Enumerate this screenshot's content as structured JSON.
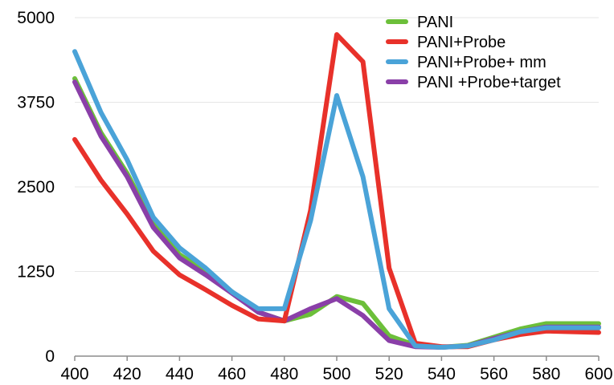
{
  "chart_data": {
    "type": "line",
    "title": "",
    "xlabel": "",
    "ylabel": "",
    "xlim": [
      400,
      600
    ],
    "ylim": [
      0,
      5000
    ],
    "x_ticks": [
      400,
      420,
      440,
      460,
      480,
      500,
      520,
      540,
      560,
      580,
      600
    ],
    "y_ticks": [
      0,
      1250,
      2500,
      3750,
      5000
    ],
    "grid": "horizontal",
    "legend_position": "top-right",
    "x": [
      400,
      410,
      420,
      430,
      440,
      450,
      460,
      470,
      480,
      490,
      500,
      510,
      520,
      530,
      540,
      550,
      560,
      570,
      580,
      590,
      600
    ],
    "series": [
      {
        "name": "PANI",
        "color": "#6cbf3a",
        "values": [
          4100,
          3300,
          2700,
          1950,
          1500,
          1250,
          950,
          650,
          520,
          620,
          880,
          780,
          300,
          160,
          130,
          160,
          280,
          400,
          480,
          480,
          480
        ]
      },
      {
        "name": "PANI+Probe",
        "color": "#e8312a",
        "values": [
          3200,
          2600,
          2100,
          1550,
          1200,
          980,
          750,
          550,
          520,
          2150,
          4750,
          4350,
          1300,
          190,
          140,
          140,
          240,
          320,
          370,
          360,
          350
        ]
      },
      {
        "name": "PANI+Probe+ mm",
        "color": "#4aa3d8",
        "values": [
          4500,
          3600,
          2900,
          2050,
          1600,
          1300,
          950,
          700,
          700,
          2000,
          3850,
          2650,
          700,
          150,
          130,
          150,
          240,
          360,
          420,
          420,
          420
        ]
      },
      {
        "name": "PANI +Probe+target",
        "color": "#8a3fa8",
        "values": [
          4050,
          3250,
          2650,
          1900,
          1450,
          1200,
          930,
          650,
          520,
          700,
          850,
          600,
          230,
          140,
          130,
          150,
          260,
          360,
          430,
          430,
          430
        ]
      }
    ]
  }
}
